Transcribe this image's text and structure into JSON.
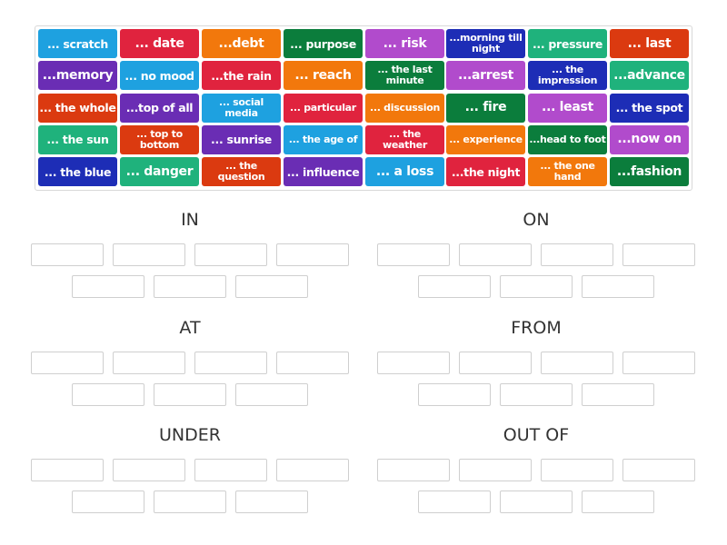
{
  "colors": {
    "blue": "#1ea1e0",
    "red": "#e0233e",
    "orange": "#f2780c",
    "green": "#0b7d3c",
    "purple": "#6a2db4",
    "redorange": "#db3a10",
    "teal": "#1fb27c",
    "darkblue": "#1d2db6",
    "magenta": "#b14bcc"
  },
  "tiles": [
    [
      {
        "text": "... scratch",
        "color": "blue"
      },
      {
        "text": "... date",
        "color": "red"
      },
      {
        "text": "...debt",
        "color": "orange"
      },
      {
        "text": "... purpose",
        "color": "green"
      },
      {
        "text": "... risk",
        "color": "magenta"
      },
      {
        "text": "...morning till night",
        "color": "darkblue"
      },
      {
        "text": "... pressure",
        "color": "teal"
      },
      {
        "text": "... last",
        "color": "redorange"
      }
    ],
    [
      {
        "text": "...memory",
        "color": "purple"
      },
      {
        "text": "... no mood",
        "color": "blue"
      },
      {
        "text": "...the rain",
        "color": "red"
      },
      {
        "text": "... reach",
        "color": "orange"
      },
      {
        "text": "... the last minute",
        "color": "green"
      },
      {
        "text": "...arrest",
        "color": "magenta"
      },
      {
        "text": "... the impression",
        "color": "darkblue"
      },
      {
        "text": "...advance",
        "color": "teal"
      }
    ],
    [
      {
        "text": "... the whole",
        "color": "redorange"
      },
      {
        "text": "...top of all",
        "color": "purple"
      },
      {
        "text": "... social media",
        "color": "blue"
      },
      {
        "text": "... particular",
        "color": "red"
      },
      {
        "text": "... discussion",
        "color": "orange"
      },
      {
        "text": "... fire",
        "color": "green"
      },
      {
        "text": "... least",
        "color": "magenta"
      },
      {
        "text": "... the spot",
        "color": "darkblue"
      }
    ],
    [
      {
        "text": "... the sun",
        "color": "teal"
      },
      {
        "text": "... top to bottom",
        "color": "redorange"
      },
      {
        "text": "... sunrise",
        "color": "purple"
      },
      {
        "text": "... the age of",
        "color": "blue"
      },
      {
        "text": "... the weather",
        "color": "red"
      },
      {
        "text": "... experience",
        "color": "orange"
      },
      {
        "text": "...head to foot",
        "color": "green"
      },
      {
        "text": "...now on",
        "color": "magenta"
      }
    ],
    [
      {
        "text": "... the blue",
        "color": "darkblue"
      },
      {
        "text": "... danger",
        "color": "teal"
      },
      {
        "text": "... the question",
        "color": "redorange"
      },
      {
        "text": "... influence",
        "color": "purple"
      },
      {
        "text": "... a loss",
        "color": "blue"
      },
      {
        "text": "...the night",
        "color": "red"
      },
      {
        "text": "... the one hand",
        "color": "orange"
      },
      {
        "text": "...fashion",
        "color": "green"
      }
    ]
  ],
  "groups": [
    "IN",
    "ON",
    "AT",
    "FROM",
    "UNDER",
    "OUT OF"
  ]
}
